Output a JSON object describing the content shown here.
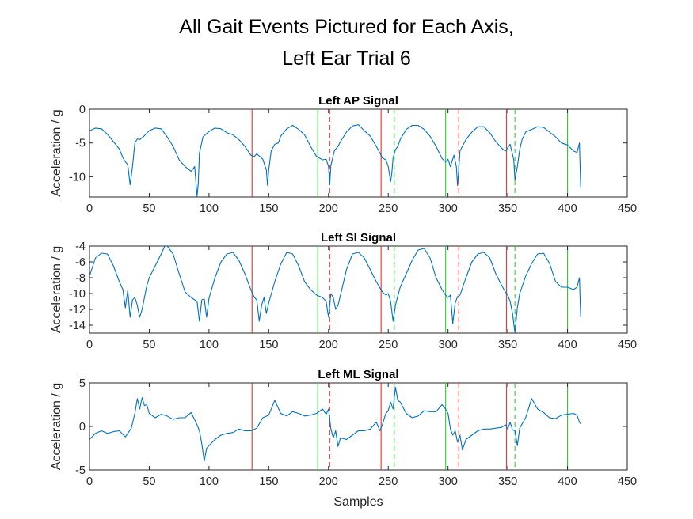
{
  "title_lines": [
    "All Gait Events Pictured for Each Axis,",
    "Left Ear Trial 6"
  ],
  "colors": {
    "signal": "#0072BD",
    "event_red": "#e8302a",
    "event_green": "#33cc33",
    "axes": "#262626"
  },
  "chart_data": [
    {
      "type": "line",
      "title": "Left AP Signal",
      "xlabel": "",
      "ylabel": "Acceleration / g",
      "xlim": [
        0,
        450
      ],
      "ylim": [
        -13,
        0
      ],
      "xticks": [
        0,
        50,
        100,
        150,
        200,
        250,
        300,
        350,
        400,
        450
      ],
      "yticks": [
        0,
        -5,
        -10
      ],
      "series": [
        {
          "x": [
            0,
            5,
            10,
            15,
            20,
            25,
            28,
            30,
            32,
            34,
            36,
            38,
            40,
            42,
            45,
            50,
            55,
            60,
            65,
            70,
            75,
            80,
            85,
            88,
            90,
            91,
            92,
            95,
            100,
            105,
            110,
            115,
            120,
            125,
            130,
            135,
            138,
            140,
            145,
            148,
            149,
            150,
            152,
            155,
            158,
            160,
            165,
            170,
            175,
            180,
            185,
            190,
            195,
            198,
            200,
            201,
            202,
            205,
            208,
            210,
            215,
            220,
            225,
            230,
            235,
            240,
            243,
            245,
            248,
            250,
            252,
            253,
            254,
            256,
            258,
            260,
            265,
            270,
            275,
            280,
            285,
            290,
            295,
            298,
            300,
            302,
            305,
            307,
            308,
            309,
            310,
            312,
            315,
            320,
            325,
            330,
            335,
            340,
            345,
            348,
            350,
            352,
            355,
            356,
            358,
            360,
            362,
            365,
            370,
            375,
            380,
            385,
            390,
            395,
            400,
            405,
            408,
            410,
            411
          ],
          "y": [
            -3.2,
            -2.8,
            -2.9,
            -3.7,
            -4.8,
            -5.9,
            -7.2,
            -7.8,
            -8.2,
            -11.2,
            -8.5,
            -5,
            -4.4,
            -4.5,
            -4.1,
            -3.2,
            -2.8,
            -2.9,
            -4.1,
            -5.5,
            -7.5,
            -8.5,
            -9.2,
            -8.5,
            -12.9,
            -11,
            -6.5,
            -4.1,
            -3.3,
            -2.8,
            -2.9,
            -3.5,
            -3.8,
            -4.5,
            -5.5,
            -6.8,
            -7,
            -6.6,
            -7.4,
            -9,
            -11.3,
            -9,
            -6.2,
            -5.2,
            -5,
            -4,
            -2.9,
            -2.4,
            -3,
            -3.8,
            -5.5,
            -7,
            -7.5,
            -7.4,
            -8.5,
            -11.2,
            -8.3,
            -6.1,
            -5.5,
            -4.8,
            -3.4,
            -2.5,
            -2.3,
            -3.2,
            -4,
            -5.5,
            -6.5,
            -7.2,
            -7.5,
            -8.5,
            -10.7,
            -9.5,
            -7.2,
            -6,
            -5.5,
            -4.5,
            -3,
            -2.4,
            -2.4,
            -3,
            -4,
            -5.5,
            -7.3,
            -7.8,
            -7.4,
            -8.5,
            -6.8,
            -8.5,
            -11.3,
            -9,
            -6.2,
            -5.5,
            -4.5,
            -3.4,
            -2.6,
            -2.6,
            -3.5,
            -4.8,
            -5.8,
            -6.2,
            -5.7,
            -5.2,
            -7.5,
            -10.5,
            -8.5,
            -6,
            -4.5,
            -3.4,
            -3,
            -2.6,
            -2.7,
            -3.4,
            -4.1,
            -5,
            -5.3,
            -6.2,
            -6.4,
            -5,
            -11.5
          ]
        }
      ],
      "event_lines": [
        {
          "x": 136,
          "color": "red",
          "style": "solid"
        },
        {
          "x": 191,
          "color": "green",
          "style": "solid"
        },
        {
          "x": 201,
          "color": "red",
          "style": "dashed"
        },
        {
          "x": 244,
          "color": "red",
          "style": "solid"
        },
        {
          "x": 255,
          "color": "green",
          "style": "dashed"
        },
        {
          "x": 298,
          "color": "green",
          "style": "solid"
        },
        {
          "x": 309,
          "color": "red",
          "style": "dashed"
        },
        {
          "x": 349,
          "color": "red",
          "style": "solid"
        },
        {
          "x": 356,
          "color": "green",
          "style": "dashed"
        },
        {
          "x": 400,
          "color": "green",
          "style": "solid"
        }
      ]
    },
    {
      "type": "line",
      "title": "Left SI Signal",
      "xlabel": "",
      "ylabel": "Acceleration / g",
      "xlim": [
        0,
        450
      ],
      "ylim": [
        -15,
        -4
      ],
      "xticks": [
        0,
        50,
        100,
        150,
        200,
        250,
        300,
        350,
        400,
        450
      ],
      "yticks": [
        -4,
        -6,
        -8,
        -10,
        -12,
        -14
      ],
      "series": [
        {
          "x": [
            0,
            5,
            10,
            15,
            20,
            25,
            28,
            30,
            32,
            34,
            36,
            38,
            40,
            42,
            44,
            46,
            48,
            50,
            55,
            60,
            63,
            65,
            70,
            75,
            80,
            85,
            88,
            90,
            92,
            94,
            96,
            98,
            100,
            105,
            110,
            115,
            120,
            125,
            130,
            135,
            138,
            140,
            142,
            144,
            146,
            148,
            150,
            155,
            160,
            165,
            170,
            175,
            180,
            185,
            190,
            195,
            198,
            200,
            202,
            204,
            206,
            208,
            210,
            215,
            220,
            225,
            230,
            235,
            240,
            245,
            248,
            250,
            252,
            254,
            256,
            258,
            260,
            265,
            270,
            275,
            280,
            285,
            290,
            295,
            298,
            300,
            302,
            304,
            306,
            308,
            310,
            315,
            320,
            325,
            330,
            335,
            340,
            345,
            348,
            350,
            352,
            354,
            356,
            358,
            360,
            365,
            370,
            375,
            380,
            385,
            390,
            395,
            400,
            405,
            408,
            410,
            411
          ],
          "y": [
            -7.8,
            -5.5,
            -4.9,
            -5,
            -6.5,
            -8.5,
            -9.5,
            -11.8,
            -9.6,
            -13,
            -10.8,
            -10.5,
            -11.5,
            -13,
            -12,
            -10.5,
            -9,
            -8,
            -6.5,
            -5,
            -4,
            -4,
            -5,
            -7.5,
            -9.8,
            -10.5,
            -10.8,
            -11,
            -13.5,
            -10.8,
            -10.7,
            -13,
            -10.6,
            -8,
            -6,
            -5,
            -4.8,
            -5.8,
            -7.5,
            -9.5,
            -10.5,
            -10.8,
            -13.5,
            -11.5,
            -10.5,
            -12.5,
            -11.2,
            -8.5,
            -6.3,
            -4.8,
            -5,
            -6.5,
            -8.5,
            -9.5,
            -10.2,
            -10.5,
            -11,
            -13,
            -10,
            -10.5,
            -12,
            -11.5,
            -10.2,
            -7,
            -5,
            -4.8,
            -5.5,
            -7,
            -8.5,
            -9.8,
            -10.2,
            -10,
            -11,
            -13.5,
            -11.5,
            -10.3,
            -9.2,
            -7.5,
            -5.8,
            -4.5,
            -4.3,
            -5.5,
            -8,
            -9.5,
            -10.2,
            -10.5,
            -10.2,
            -13.8,
            -11.2,
            -10.4,
            -10.2,
            -8,
            -6,
            -5,
            -4.8,
            -5.5,
            -7.5,
            -9,
            -9.8,
            -10.2,
            -11,
            -12.5,
            -15,
            -11.8,
            -10,
            -7.8,
            -6.2,
            -5,
            -4.9,
            -6.2,
            -8.5,
            -9.2,
            -9.2,
            -9.5,
            -9.2,
            -8,
            -13
          ]
        }
      ],
      "event_lines": [
        {
          "x": 136,
          "color": "red",
          "style": "solid"
        },
        {
          "x": 191,
          "color": "green",
          "style": "solid"
        },
        {
          "x": 201,
          "color": "red",
          "style": "dashed"
        },
        {
          "x": 244,
          "color": "red",
          "style": "solid"
        },
        {
          "x": 255,
          "color": "green",
          "style": "dashed"
        },
        {
          "x": 298,
          "color": "green",
          "style": "solid"
        },
        {
          "x": 309,
          "color": "red",
          "style": "dashed"
        },
        {
          "x": 349,
          "color": "red",
          "style": "solid"
        },
        {
          "x": 356,
          "color": "green",
          "style": "dashed"
        },
        {
          "x": 400,
          "color": "green",
          "style": "solid"
        }
      ]
    },
    {
      "type": "line",
      "title": "Left ML Signal",
      "xlabel": "Samples",
      "ylabel": "Acceleration / g",
      "xlim": [
        0,
        450
      ],
      "ylim": [
        -5,
        5
      ],
      "xticks": [
        0,
        50,
        100,
        150,
        200,
        250,
        300,
        350,
        400,
        450
      ],
      "yticks": [
        5,
        0,
        -5
      ],
      "series": [
        {
          "x": [
            0,
            5,
            10,
            15,
            20,
            25,
            30,
            35,
            38,
            40,
            42,
            44,
            46,
            48,
            50,
            55,
            60,
            65,
            70,
            75,
            80,
            85,
            90,
            92,
            94,
            96,
            98,
            100,
            105,
            110,
            115,
            120,
            125,
            130,
            135,
            140,
            145,
            150,
            155,
            160,
            165,
            170,
            175,
            180,
            185,
            190,
            195,
            198,
            200,
            202,
            204,
            206,
            208,
            210,
            215,
            220,
            225,
            230,
            235,
            240,
            243,
            245,
            248,
            250,
            252,
            254,
            256,
            258,
            260,
            265,
            270,
            275,
            280,
            285,
            290,
            295,
            298,
            300,
            302,
            304,
            306,
            308,
            310,
            312,
            315,
            320,
            325,
            330,
            335,
            340,
            345,
            348,
            350,
            352,
            354,
            356,
            358,
            360,
            365,
            370,
            375,
            380,
            385,
            390,
            395,
            400,
            405,
            408,
            410,
            411
          ],
          "y": [
            -1.5,
            -0.8,
            -0.5,
            -0.8,
            -0.6,
            -0.5,
            -1.2,
            -0.2,
            1.5,
            3.2,
            2,
            3.3,
            2.4,
            2.5,
            1.5,
            1,
            1.4,
            1.2,
            0.8,
            1,
            1,
            1.6,
            0.2,
            -0.5,
            -2,
            -4,
            -2.5,
            -2.2,
            -1.5,
            -1,
            -0.8,
            -0.7,
            -0.3,
            -0.5,
            -0.5,
            -0.2,
            1,
            1.3,
            3,
            1.5,
            1.2,
            1.7,
            1.5,
            1.2,
            1.3,
            1.5,
            2,
            1.4,
            2,
            -0.3,
            -1.3,
            -0.5,
            -2.3,
            -1.3,
            -1.5,
            -1,
            -0.5,
            -0.5,
            -0.3,
            0.5,
            -0.5,
            0.2,
            1.5,
            1.8,
            2.8,
            2,
            4.5,
            3,
            2.8,
            1.5,
            1,
            1.2,
            1.8,
            1.7,
            1.7,
            2.5,
            2,
            1.5,
            -0.3,
            -1,
            -0.5,
            -1.8,
            -1,
            -2.7,
            -1.5,
            -1,
            -0.5,
            -0.3,
            -0.3,
            -0.2,
            -0.1,
            0.2,
            -0.3,
            0.5,
            -0.4,
            -0.5,
            -2.2,
            -0.2,
            1,
            3.2,
            2,
            1.6,
            1,
            0.9,
            1.3,
            1.4,
            1.5,
            1.3,
            0.5,
            0.3
          ]
        }
      ],
      "event_lines": [
        {
          "x": 136,
          "color": "red",
          "style": "solid"
        },
        {
          "x": 191,
          "color": "green",
          "style": "solid"
        },
        {
          "x": 201,
          "color": "red",
          "style": "dashed"
        },
        {
          "x": 244,
          "color": "red",
          "style": "solid"
        },
        {
          "x": 255,
          "color": "green",
          "style": "dashed"
        },
        {
          "x": 298,
          "color": "green",
          "style": "solid"
        },
        {
          "x": 309,
          "color": "red",
          "style": "dashed"
        },
        {
          "x": 349,
          "color": "red",
          "style": "solid"
        },
        {
          "x": 356,
          "color": "green",
          "style": "dashed"
        },
        {
          "x": 400,
          "color": "green",
          "style": "solid"
        }
      ]
    }
  ]
}
